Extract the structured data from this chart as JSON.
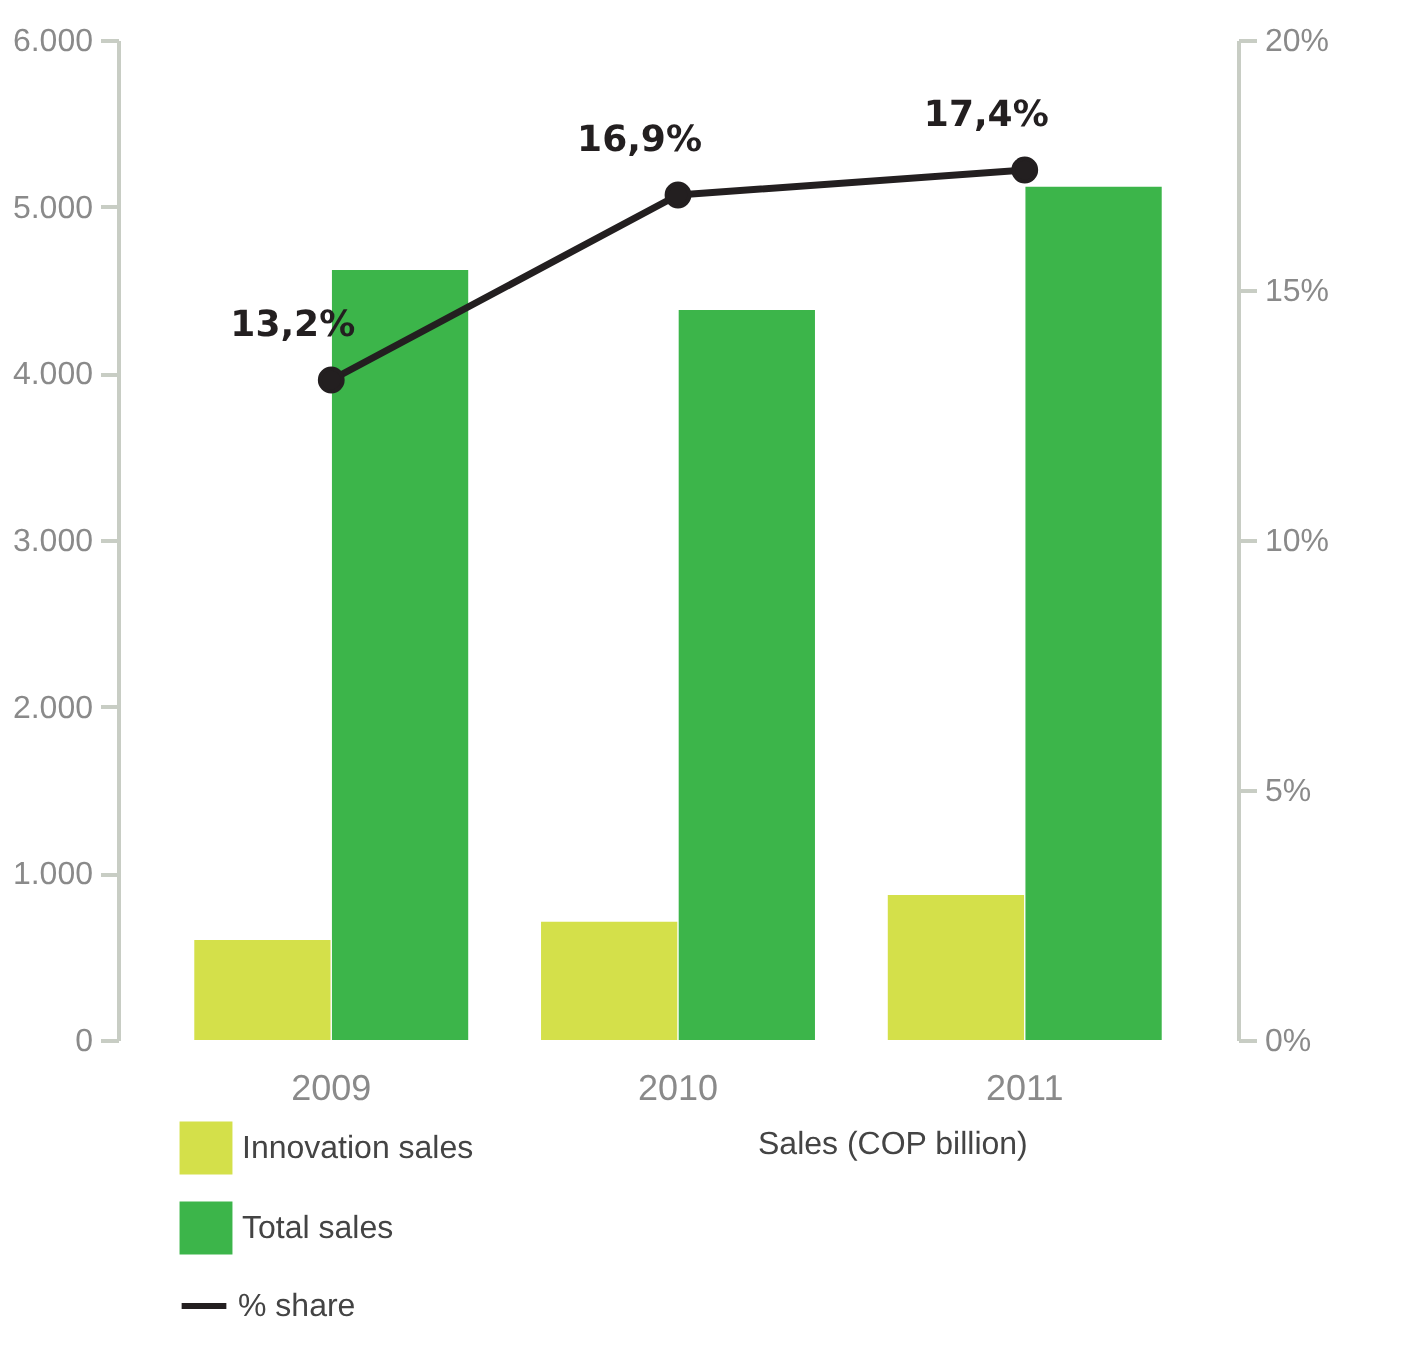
{
  "chart_data": {
    "type": "bar",
    "categories": [
      "2009",
      "2010",
      "2011"
    ],
    "series": [
      {
        "name": "Innovation sales",
        "color": "#d4e04a",
        "values": [
          600,
          710,
          870
        ]
      },
      {
        "name": "Total sales",
        "color": "#3cb54a",
        "values": [
          4620,
          4380,
          5120
        ]
      },
      {
        "name": "% share",
        "type": "line",
        "axis": "y2",
        "color": "#231f20",
        "values": [
          13.2,
          16.9,
          17.4
        ],
        "value_labels": [
          "13,2%",
          "16,9%",
          "17,4%"
        ]
      }
    ],
    "ylim": [
      0,
      6000
    ],
    "yticks": [
      {
        "value": 0,
        "label": "0"
      },
      {
        "value": 1000,
        "label": "1.000"
      },
      {
        "value": 2000,
        "label": "2.000"
      },
      {
        "value": 3000,
        "label": "3.000"
      },
      {
        "value": 4000,
        "label": "4.000"
      },
      {
        "value": 5000,
        "label": "5.000"
      },
      {
        "value": 6000,
        "label": "6.000"
      }
    ],
    "y2lim": [
      0,
      20
    ],
    "y2ticks": [
      {
        "value": 0,
        "label": "0%"
      },
      {
        "value": 5,
        "label": "5%"
      },
      {
        "value": 10,
        "label": "10%"
      },
      {
        "value": 15,
        "label": "15%"
      },
      {
        "value": 20,
        "label": "20%"
      }
    ],
    "annotations": [
      "Sales (COP billion)"
    ],
    "legend": "bottom left",
    "marker": "circle",
    "grid": false
  }
}
